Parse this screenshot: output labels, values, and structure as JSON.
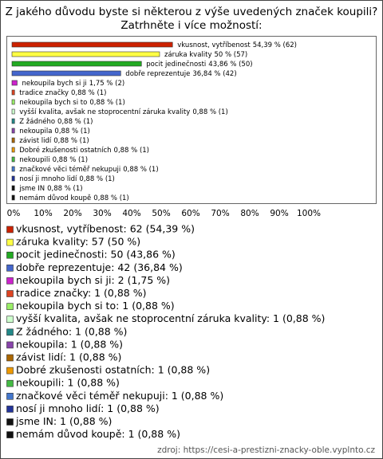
{
  "chart_data": {
    "type": "bar",
    "orientation": "horizontal",
    "title": "Z jakého důvodu byste si některou z výše uvedených značek koupili?",
    "subtitle": "Zatrhněte i více možností:",
    "categories": [
      "vkusnost, vytříbenost",
      "záruka kvality",
      "pocit jedinečnosti",
      "dobře reprezentuje",
      "nekoupila bych si ji",
      "tradice značky",
      "nekoupila bych si to",
      "vyšší kvalita, avšak ne stoprocentní záruka kvality",
      "Z žádného",
      "nekoupila",
      "závist lidí",
      "Dobré zkušenosti ostatních",
      "nekoupili",
      "značkové věci téměř nekupuji",
      "nosí ji mnoho lidí",
      "jsme IN",
      "nemám důvod koupě"
    ],
    "values": [
      54.39,
      50,
      43.86,
      36.84,
      1.75,
      0.88,
      0.88,
      0.88,
      0.88,
      0.88,
      0.88,
      0.88,
      0.88,
      0.88,
      0.88,
      0.88,
      0.88
    ],
    "value_labels": [
      "54,39 % (62)",
      "50 % (57)",
      "43,86 % (50)",
      "36,84 % (42)",
      "1,75 % (2)",
      "0,88 % (1)",
      "0,88 % (1)",
      "0,88 % (1)",
      "0,88 % (1)",
      "0,88 % (1)",
      "0,88 % (1)",
      "0,88 % (1)",
      "0,88 % (1)",
      "0,88 % (1)",
      "0,88 % (1)",
      "0,88 % (1)",
      "0,88 % (1)"
    ],
    "colors": [
      "#cc2200",
      "#ffff44",
      "#22aa22",
      "#4466cc",
      "#cc22cc",
      "#dd4422",
      "#99ee66",
      "#ccffcc",
      "#228888",
      "#8844aa",
      "#aa6600",
      "#ee9900",
      "#44bb44",
      "#4477cc",
      "#223399",
      "#111111",
      "#111111"
    ],
    "legend_labels": [
      "vkusnost, vytříbenost: 62 (54,39 %)",
      "záruka kvality: 57 (50 %)",
      "pocit jedinečnosti: 50 (43,86 %)",
      "dobře reprezentuje: 42 (36,84 %)",
      "nekoupila bych si ji: 2 (1,75 %)",
      "tradice značky: 1 (0,88 %)",
      "nekoupila bych si to: 1 (0,88 %)",
      "vyšší kvalita, avšak ne stoprocentní záruka kvality: 1 (0,88 %)",
      "Z žádného: 1 (0,88 %)",
      "nekoupila: 1 (0,88 %)",
      "závist lidí: 1 (0,88 %)",
      "Dobré zkušenosti ostatních: 1 (0,88 %)",
      "nekoupili: 1 (0,88 %)",
      "značkové věci téměř nekupuji: 1 (0,88 %)",
      "nosí ji mnoho lidí: 1 (0,88 %)",
      "jsme IN: 1 (0,88 %)",
      "nemám důvod koupě: 1 (0,88 %)"
    ],
    "xlim": [
      0,
      100
    ],
    "xticks": [
      {
        "value": 0,
        "label": "0%"
      },
      {
        "value": 10,
        "label": "10%"
      },
      {
        "value": 20,
        "label": "20%"
      },
      {
        "value": 30,
        "label": "30%"
      },
      {
        "value": 40,
        "label": "40%"
      },
      {
        "value": 50,
        "label": "50%"
      },
      {
        "value": 60,
        "label": "60%"
      },
      {
        "value": 70,
        "label": "70%"
      },
      {
        "value": 80,
        "label": "80%"
      },
      {
        "value": 90,
        "label": "90%"
      },
      {
        "value": 100,
        "label": "100%"
      }
    ],
    "source": "zdroj: https://cesi-a-prestizni-znacky-oble.vyplnto.cz"
  }
}
